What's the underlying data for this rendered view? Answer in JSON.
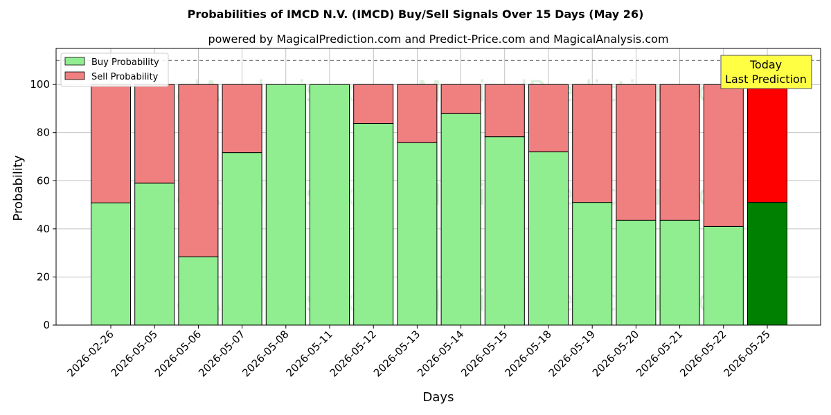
{
  "chart_data": {
    "type": "bar",
    "title": "Probabilities of IMCD N.V. (IMCD) Buy/Sell Signals Over 15 Days (May 26)",
    "subtitle": "powered by MagicalPrediction.com and Predict-Price.com and MagicalAnalysis.com",
    "xlabel": "Days",
    "ylabel": "Probability",
    "ylim": [
      0,
      115
    ],
    "yticks": [
      0,
      20,
      40,
      60,
      80,
      100
    ],
    "reference_line": 110,
    "grid": true,
    "stacked": true,
    "legend_position": "top-left",
    "categories": [
      "2026-02-26",
      "2026-05-05",
      "2026-05-06",
      "2026-05-07",
      "2026-05-08",
      "2026-05-11",
      "2026-05-12",
      "2026-05-13",
      "2026-05-14",
      "2026-05-15",
      "2026-05-18",
      "2026-05-19",
      "2026-05-20",
      "2026-05-21",
      "2026-05-22",
      "2026-05-25"
    ],
    "series": [
      {
        "name": "Buy Probability",
        "color": "#90ee90",
        "highlight_color": "#008000",
        "values": [
          50.8,
          59,
          28.4,
          71.7,
          100,
          100,
          83.8,
          75.8,
          87.9,
          78.3,
          72,
          51,
          43.6,
          43.6,
          41,
          51
        ]
      },
      {
        "name": "Sell Probability",
        "color": "#f08080",
        "highlight_color": "#ff0000",
        "values": [
          49.2,
          41,
          71.6,
          28.3,
          0,
          0,
          16.2,
          24.2,
          12.1,
          21.7,
          28,
          49,
          56.4,
          56.4,
          59,
          49
        ]
      }
    ],
    "annotation": {
      "line1": "Today",
      "line2": "Last Prediction",
      "background": "#ffff44"
    },
    "watermarks": [
      "MagicalAnalysis.com",
      "MagicalPrediction.com"
    ]
  }
}
